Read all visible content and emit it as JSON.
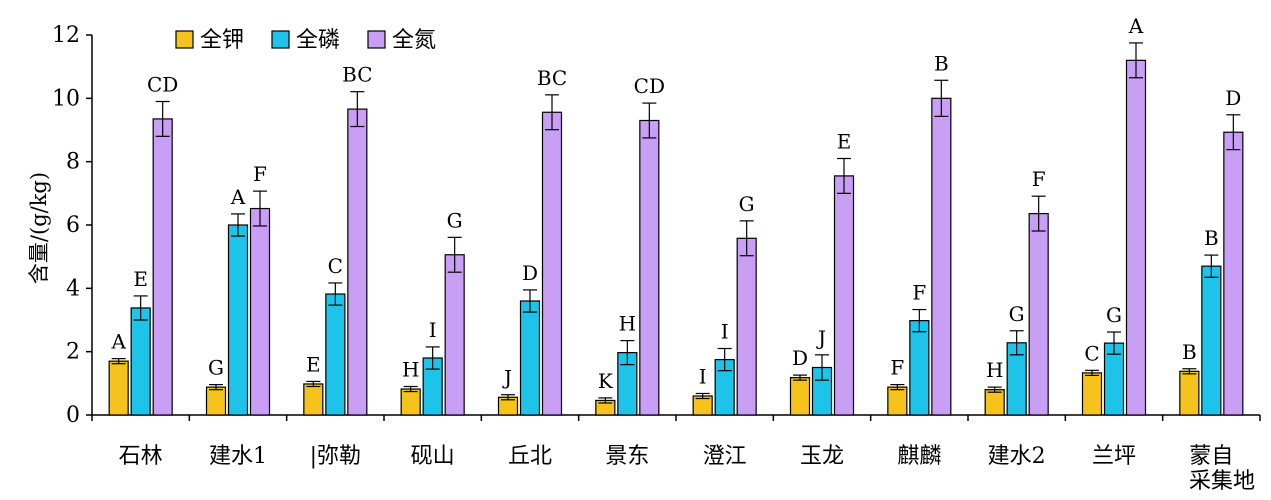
{
  "chart_data": {
    "type": "bar",
    "title": "",
    "xlabel": "",
    "ylabel": "含量/(g/kg)",
    "ylim": [
      0,
      12
    ],
    "yticks": [
      0,
      2,
      4,
      6,
      8,
      10,
      12
    ],
    "grid": false,
    "legend_position": "top-left",
    "categories": [
      "石林",
      "建水1",
      "|弥勒",
      "砚山",
      "丘北",
      "景东",
      "澄江",
      "玉龙",
      "麒麟",
      "建水2",
      "兰坪",
      "蒙自"
    ],
    "extra_label": "采集地",
    "series": [
      {
        "name": "全钾",
        "color": "#F5C31C",
        "values": [
          1.7,
          0.88,
          0.98,
          0.82,
          0.56,
          0.46,
          0.6,
          1.18,
          0.88,
          0.8,
          1.33,
          1.38
        ],
        "errors": [
          0.08,
          0.08,
          0.08,
          0.08,
          0.08,
          0.08,
          0.08,
          0.08,
          0.08,
          0.08,
          0.08,
          0.08
        ],
        "letters": [
          "A",
          "G",
          "E",
          "H",
          "J",
          "K",
          "I",
          "D",
          "F",
          "H",
          "C",
          "B"
        ]
      },
      {
        "name": "全磷",
        "color": "#1EC3EA",
        "values": [
          3.38,
          6.0,
          3.82,
          1.8,
          3.6,
          1.97,
          1.75,
          1.5,
          2.98,
          2.28,
          2.27,
          4.7
        ],
        "errors": [
          0.38,
          0.35,
          0.35,
          0.35,
          0.35,
          0.38,
          0.35,
          0.4,
          0.35,
          0.38,
          0.35,
          0.35
        ],
        "letters": [
          "E",
          "A",
          "C",
          "I",
          "D",
          "H",
          "I",
          "J",
          "F",
          "G",
          "G",
          "B"
        ]
      },
      {
        "name": "全氮",
        "color": "#C99EF5",
        "values": [
          9.35,
          6.52,
          9.66,
          5.06,
          9.56,
          9.3,
          5.58,
          7.55,
          10.0,
          6.36,
          11.2,
          8.93
        ],
        "errors": [
          0.55,
          0.55,
          0.55,
          0.55,
          0.55,
          0.55,
          0.55,
          0.55,
          0.57,
          0.55,
          0.55,
          0.55
        ],
        "letters": [
          "CD",
          "F",
          "BC",
          "G",
          "BC",
          "CD",
          "G",
          "E",
          "B",
          "F",
          "A",
          "D"
        ]
      }
    ]
  },
  "axis": {
    "y_title": "含量/(g/kg)",
    "x_extra": "采集地"
  }
}
